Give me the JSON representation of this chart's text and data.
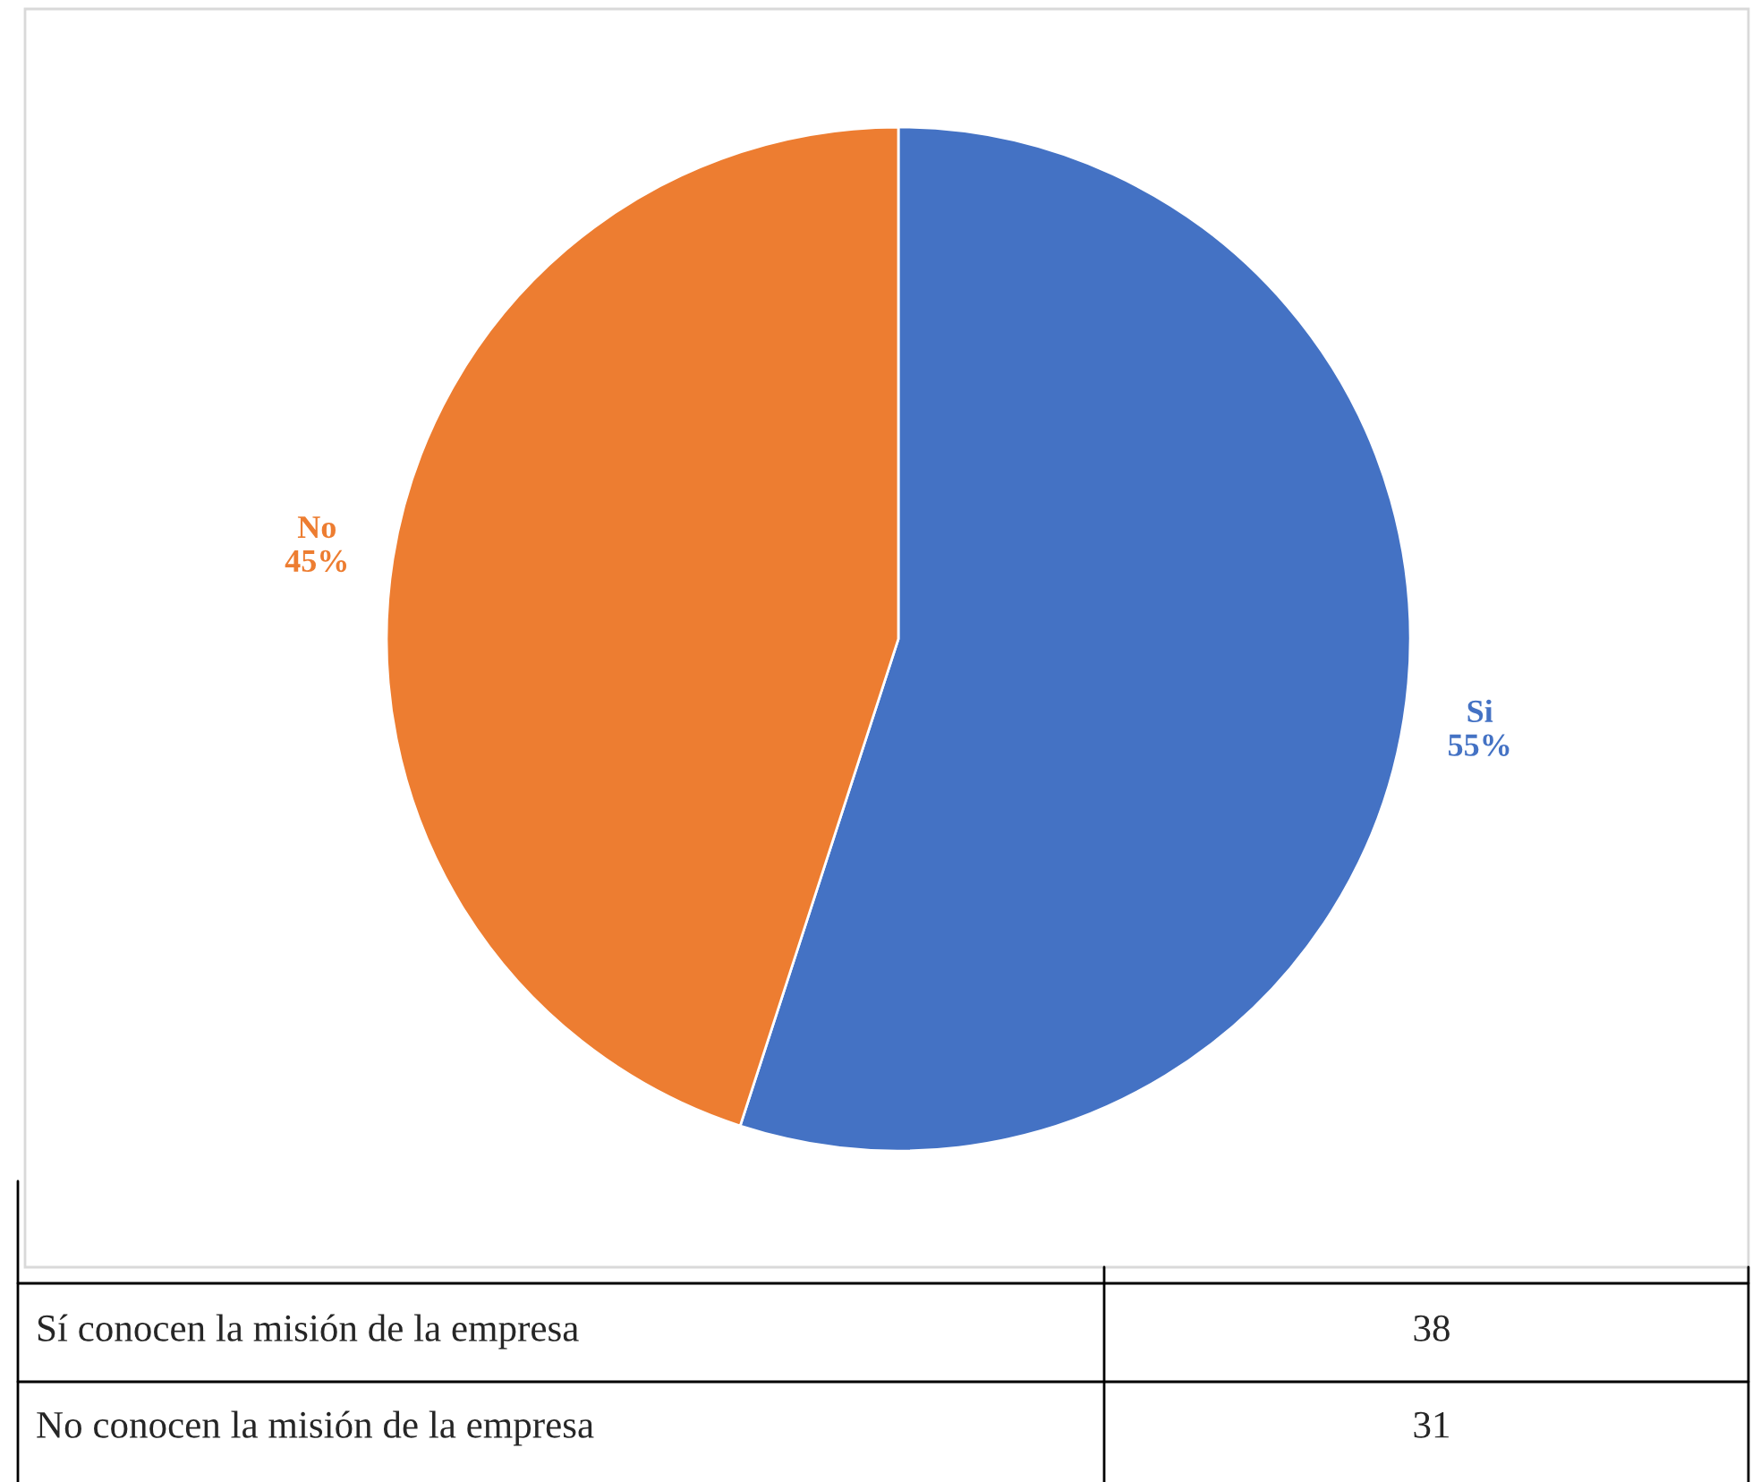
{
  "chart_data": {
    "type": "pie",
    "categories": [
      "Si",
      "No"
    ],
    "values": [
      55,
      45
    ],
    "colors": [
      "#4472c4",
      "#ed7d31"
    ],
    "value_labels": [
      "55%",
      "45%"
    ],
    "annotations": [
      "Sí conocen la misión de la empresa",
      "38",
      "No conocen la misión de la empresa",
      "31"
    ]
  }
}
